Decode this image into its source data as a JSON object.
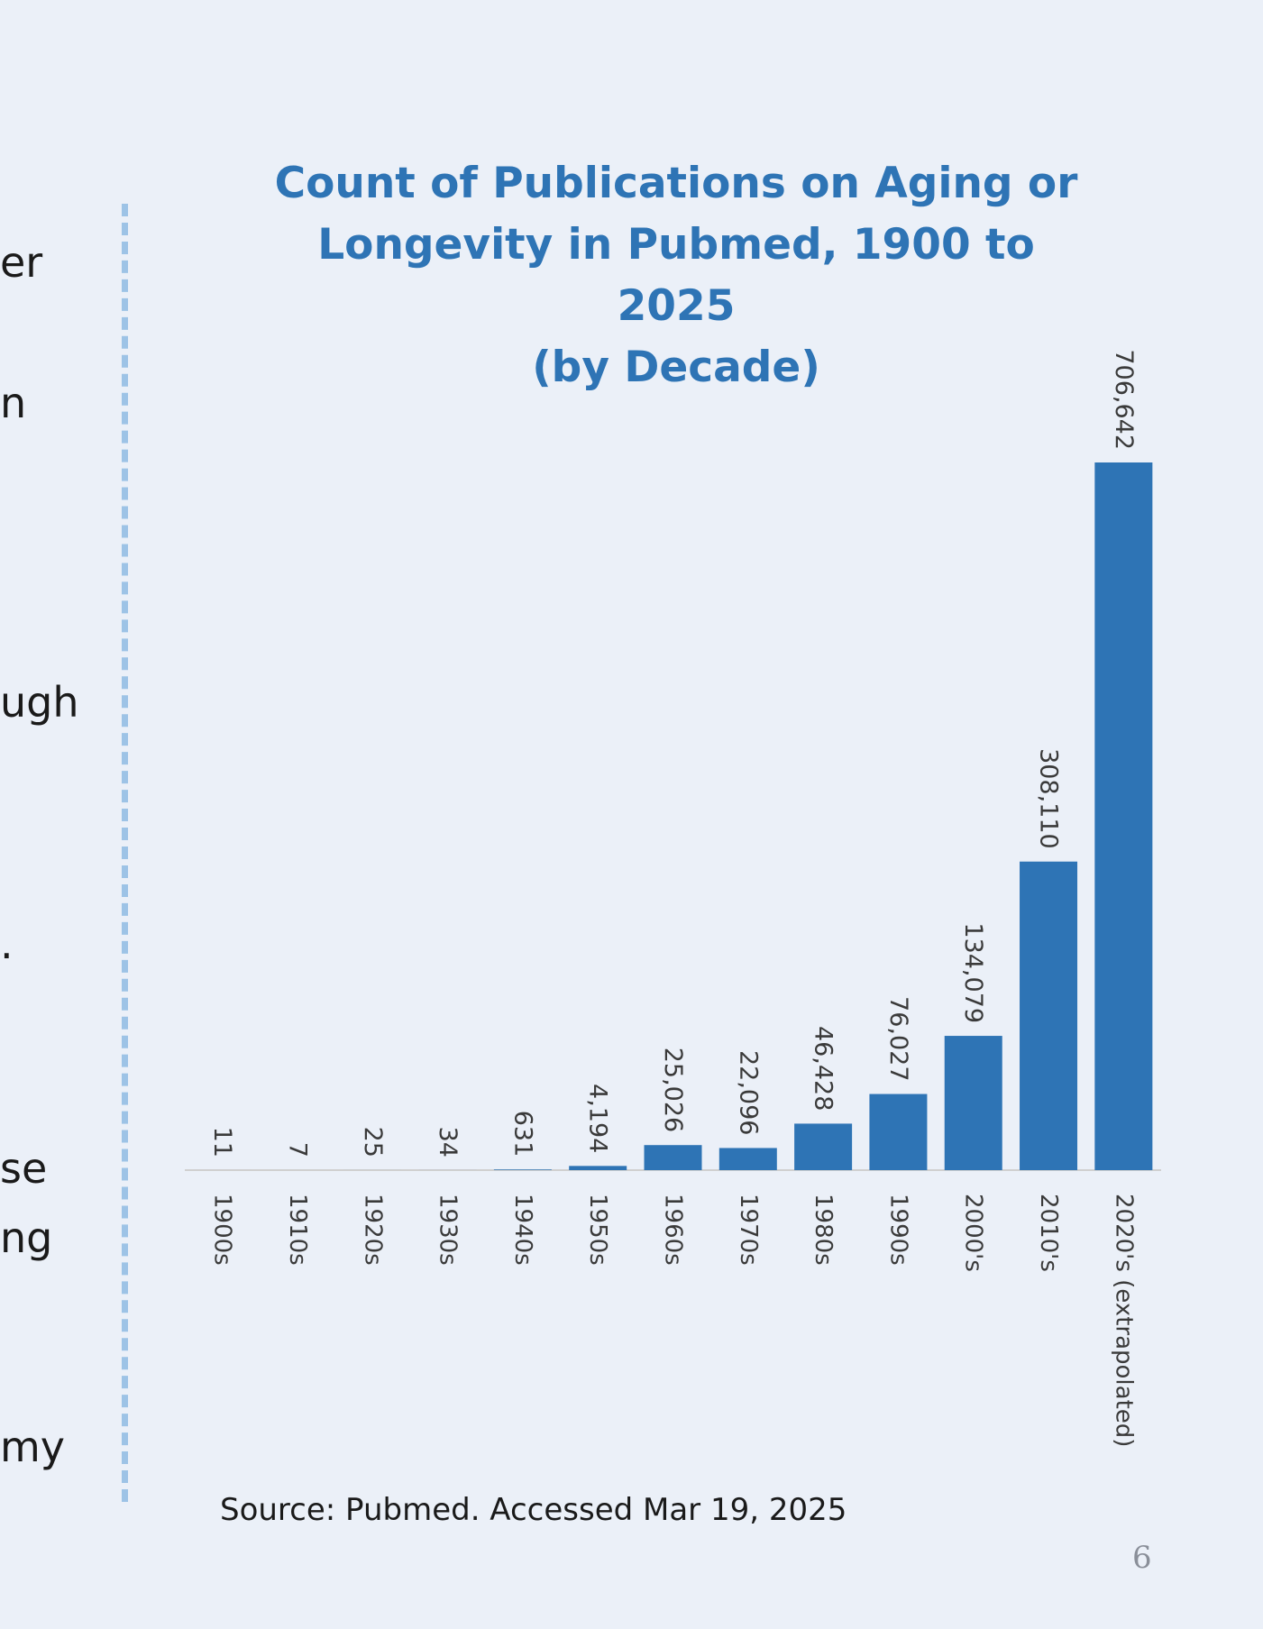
{
  "left_text": [
    "er",
    "n",
    "ugh",
    ".",
    "se",
    "ng",
    "my"
  ],
  "chart_data": {
    "type": "bar",
    "title_lines": [
      "Count of Publications on Aging or",
      "Longevity in Pubmed, 1900 to 2025",
      "(by Decade)"
    ],
    "categories": [
      "1900s",
      "1910s",
      "1920s",
      "1930s",
      "1940s",
      "1950s",
      "1960s",
      "1970s",
      "1980s",
      "1990s",
      "2000's",
      "2010's",
      "2020's (extrapolated)"
    ],
    "values": [
      11,
      7,
      25,
      34,
      631,
      4194,
      25026,
      22096,
      46428,
      76027,
      134079,
      308110,
      706642
    ],
    "value_labels": [
      "11",
      "7",
      "25",
      "34",
      "631",
      "4,194",
      "25,026",
      "22,096",
      "46,428",
      "76,027",
      "134,079",
      "308,110",
      "706,642"
    ],
    "bar_color": "#2e74b5",
    "label_orientation": "rotated-vertical",
    "grid": false,
    "legend": "none",
    "ylim": [
      0,
      706642
    ]
  },
  "source": "Source: Pubmed. Accessed Mar 19, 2025",
  "page_number": "6",
  "colors": {
    "background": "#ebf0f8",
    "title": "#2e74b5",
    "divider": "#9dc3e6",
    "axis": "#d0d0d0",
    "label": "#3a3a3a"
  }
}
